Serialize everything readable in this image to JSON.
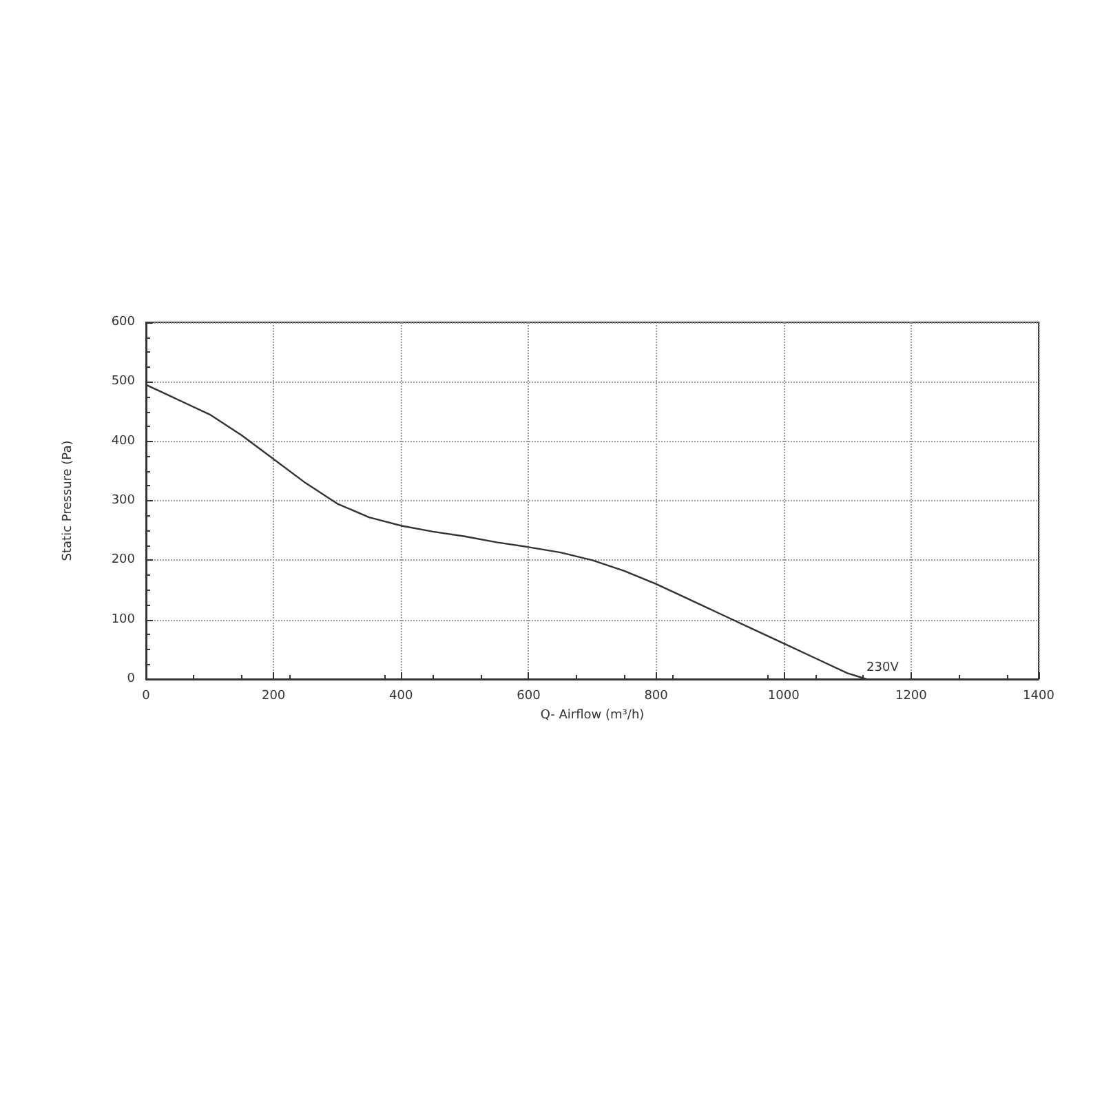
{
  "chart_data": {
    "type": "line",
    "xlabel": "Q- Airflow (m³/h)",
    "ylabel": "Static Pressure (Pa)",
    "xlim": [
      0,
      1400
    ],
    "xticks": [
      0,
      200,
      400,
      600,
      800,
      1000,
      1200,
      1400
    ],
    "ylim": [
      0,
      600
    ],
    "yticks": [
      0,
      100,
      200,
      300,
      400,
      500,
      600
    ],
    "grid": true,
    "line_style": "solid",
    "marker": "none",
    "series": [
      {
        "name": "230V",
        "color": "#333333",
        "x": [
          0,
          50,
          100,
          150,
          200,
          250,
          300,
          350,
          400,
          450,
          500,
          550,
          600,
          650,
          700,
          750,
          800,
          850,
          900,
          950,
          1000,
          1050,
          1100,
          1130
        ],
        "values": [
          495,
          470,
          445,
          410,
          370,
          330,
          295,
          272,
          258,
          248,
          240,
          230,
          222,
          213,
          200,
          182,
          160,
          135,
          110,
          85,
          60,
          35,
          10,
          0
        ]
      }
    ]
  }
}
